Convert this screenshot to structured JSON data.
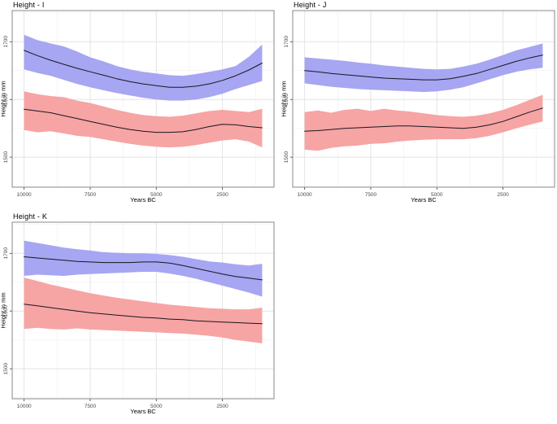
{
  "page": {
    "background": "#ffffff"
  },
  "colors": {
    "band_blue": "#a6a6f2",
    "band_red": "#f7a4a4",
    "mean_line": "#17171f",
    "grid_major": "#e4e4e4",
    "grid_minor": "#f1f1f1",
    "panel_border": "#8a8a8a",
    "tick_mark": "#333333",
    "tick_label": "#4a4a4a",
    "text": "#000000"
  },
  "chart_data": [
    {
      "type": "area",
      "title": "Height - I",
      "xlabel": "Years BC",
      "ylabel": "Height in mm",
      "legend": "none",
      "grid": "major+minor",
      "x_reversed": true,
      "xlim": [
        10450,
        550
      ],
      "ylim": [
        1448,
        1754
      ],
      "x_ticks": [
        10000,
        7500,
        5000,
        2500
      ],
      "x_minor_ticks": [
        8750,
        6250,
        3750,
        1250
      ],
      "y_ticks": [
        1500,
        1600,
        1700
      ],
      "y_minor_ticks": [
        1450,
        1550,
        1650,
        1750
      ],
      "x": [
        10000,
        9500,
        9000,
        8500,
        8000,
        7500,
        7000,
        6500,
        6000,
        5500,
        5000,
        4500,
        4000,
        3500,
        3000,
        2500,
        2000,
        1500,
        1000
      ],
      "series": [
        {
          "name": "blue-band",
          "color_key": "band_blue",
          "upper": [
            1712,
            1703,
            1697,
            1692,
            1683,
            1673,
            1666,
            1658,
            1652,
            1648,
            1645,
            1642,
            1641,
            1644,
            1648,
            1652,
            1658,
            1674,
            1695
          ],
          "mean": [
            1685,
            1676,
            1668,
            1661,
            1654,
            1648,
            1642,
            1636,
            1631,
            1627,
            1624,
            1621,
            1621,
            1623,
            1627,
            1633,
            1641,
            1651,
            1663
          ],
          "lower": [
            1652,
            1646,
            1641,
            1634,
            1627,
            1621,
            1616,
            1611,
            1607,
            1603,
            1600,
            1598,
            1598,
            1600,
            1604,
            1610,
            1618,
            1625,
            1632
          ]
        },
        {
          "name": "red-band",
          "color_key": "band_red",
          "upper": [
            1614,
            1609,
            1606,
            1604,
            1598,
            1594,
            1588,
            1582,
            1577,
            1573,
            1571,
            1570,
            1572,
            1576,
            1580,
            1582,
            1580,
            1578,
            1584
          ],
          "mean": [
            1583,
            1580,
            1577,
            1572,
            1567,
            1562,
            1557,
            1552,
            1548,
            1545,
            1543,
            1543,
            1544,
            1548,
            1553,
            1557,
            1556,
            1553,
            1551
          ],
          "lower": [
            1547,
            1543,
            1545,
            1541,
            1537,
            1535,
            1531,
            1527,
            1523,
            1520,
            1518,
            1517,
            1518,
            1521,
            1525,
            1529,
            1531,
            1527,
            1517
          ]
        }
      ]
    },
    {
      "type": "area",
      "title": "Height - J",
      "xlabel": "Years BC",
      "ylabel": "Height in mm",
      "legend": "none",
      "grid": "major+minor",
      "x_reversed": true,
      "xlim": [
        10450,
        550
      ],
      "ylim": [
        1448,
        1754
      ],
      "x_ticks": [
        10000,
        7500,
        5000,
        2500
      ],
      "x_minor_ticks": [
        8750,
        6250,
        3750,
        1250
      ],
      "y_ticks": [
        1500,
        1600,
        1700
      ],
      "y_minor_ticks": [
        1450,
        1550,
        1650,
        1750
      ],
      "x": [
        10000,
        9500,
        9000,
        8500,
        8000,
        7500,
        7000,
        6500,
        6000,
        5500,
        5000,
        4500,
        4000,
        3500,
        3000,
        2500,
        2000,
        1500,
        1000
      ],
      "series": [
        {
          "name": "blue-band",
          "color_key": "band_blue",
          "upper": [
            1673,
            1671,
            1669,
            1667,
            1664,
            1662,
            1659,
            1657,
            1655,
            1653,
            1652,
            1653,
            1657,
            1662,
            1669,
            1677,
            1685,
            1691,
            1697
          ],
          "mean": [
            1650,
            1648,
            1645,
            1643,
            1641,
            1639,
            1637,
            1636,
            1635,
            1634,
            1634,
            1636,
            1640,
            1645,
            1652,
            1659,
            1666,
            1672,
            1677
          ],
          "lower": [
            1628,
            1625,
            1622,
            1620,
            1618,
            1617,
            1616,
            1615,
            1614,
            1613,
            1614,
            1617,
            1621,
            1628,
            1635,
            1642,
            1648,
            1652,
            1655
          ]
        },
        {
          "name": "red-band",
          "color_key": "band_red",
          "upper": [
            1578,
            1581,
            1577,
            1582,
            1584,
            1580,
            1584,
            1581,
            1579,
            1576,
            1573,
            1571,
            1570,
            1572,
            1576,
            1582,
            1590,
            1599,
            1608
          ],
          "mean": [
            1545,
            1546,
            1548,
            1550,
            1551,
            1552,
            1553,
            1554,
            1554,
            1553,
            1552,
            1551,
            1550,
            1552,
            1556,
            1562,
            1570,
            1578,
            1585
          ],
          "lower": [
            1513,
            1511,
            1516,
            1519,
            1520,
            1523,
            1524,
            1527,
            1529,
            1530,
            1531,
            1531,
            1531,
            1533,
            1537,
            1543,
            1550,
            1556,
            1562
          ]
        }
      ]
    },
    {
      "type": "area",
      "title": "Height - K",
      "xlabel": "Years BC",
      "ylabel": "Height in mm",
      "legend": "none",
      "grid": "major+minor",
      "x_reversed": true,
      "xlim": [
        10450,
        550
      ],
      "ylim": [
        1448,
        1754
      ],
      "x_ticks": [
        10000,
        7500,
        5000,
        2500
      ],
      "x_minor_ticks": [
        8750,
        6250,
        3750,
        1250
      ],
      "y_ticks": [
        1500,
        1600,
        1700
      ],
      "y_minor_ticks": [
        1450,
        1550,
        1650,
        1750
      ],
      "x": [
        10000,
        9500,
        9000,
        8500,
        8000,
        7500,
        7000,
        6500,
        6000,
        5500,
        5000,
        4500,
        4000,
        3500,
        3000,
        2500,
        2000,
        1500,
        1000
      ],
      "series": [
        {
          "name": "blue-band",
          "color_key": "band_blue",
          "upper": [
            1722,
            1718,
            1714,
            1710,
            1707,
            1705,
            1702,
            1701,
            1700,
            1700,
            1699,
            1697,
            1694,
            1690,
            1686,
            1684,
            1681,
            1679,
            1682
          ],
          "mean": [
            1694,
            1692,
            1690,
            1688,
            1686,
            1685,
            1684,
            1684,
            1684,
            1685,
            1685,
            1683,
            1679,
            1674,
            1669,
            1664,
            1660,
            1657,
            1654
          ],
          "lower": [
            1661,
            1663,
            1662,
            1661,
            1663,
            1664,
            1665,
            1666,
            1667,
            1668,
            1668,
            1665,
            1661,
            1656,
            1650,
            1644,
            1638,
            1632,
            1625
          ]
        },
        {
          "name": "red-band",
          "color_key": "band_red",
          "upper": [
            1658,
            1652,
            1646,
            1641,
            1636,
            1631,
            1627,
            1623,
            1620,
            1617,
            1614,
            1611,
            1609,
            1607,
            1605,
            1604,
            1603,
            1603,
            1606
          ],
          "mean": [
            1612,
            1609,
            1606,
            1603,
            1600,
            1597,
            1595,
            1593,
            1591,
            1589,
            1588,
            1586,
            1585,
            1583,
            1582,
            1581,
            1580,
            1579,
            1578
          ],
          "lower": [
            1569,
            1571,
            1569,
            1568,
            1570,
            1568,
            1567,
            1566,
            1565,
            1564,
            1563,
            1562,
            1561,
            1559,
            1557,
            1554,
            1550,
            1547,
            1544
          ]
        }
      ]
    }
  ]
}
